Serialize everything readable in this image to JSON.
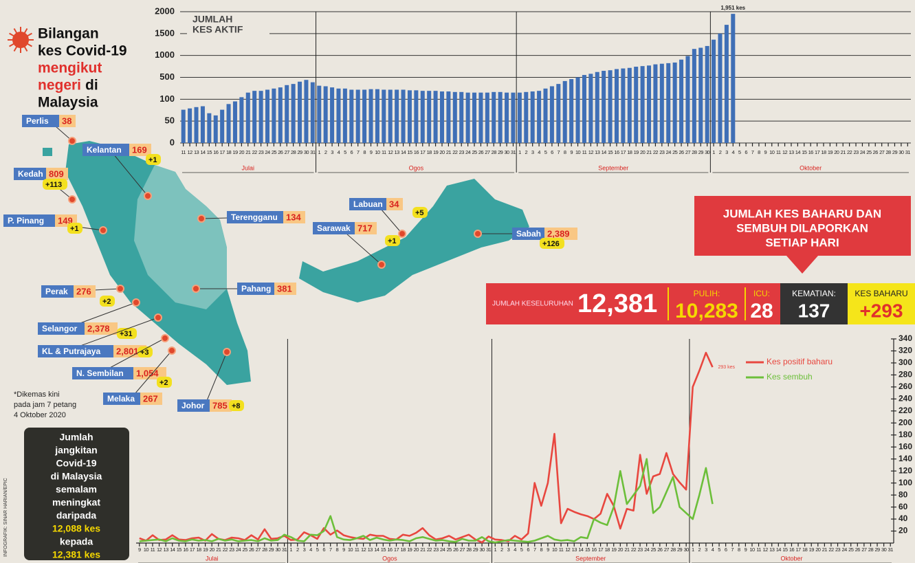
{
  "header": {
    "title": [
      "Bilangan",
      "kes Covid-19",
      "mengikut",
      "negeri",
      "di",
      "Malaysia"
    ]
  },
  "map": {
    "states": [
      {
        "name": "Perlis",
        "cases": "38",
        "new": null
      },
      {
        "name": "Kelantan",
        "cases": "169",
        "new": "+1"
      },
      {
        "name": "Kedah",
        "cases": "809",
        "new": "+113"
      },
      {
        "name": "P. Pinang",
        "cases": "149",
        "new": "+1"
      },
      {
        "name": "Terengganu",
        "cases": "134",
        "new": null
      },
      {
        "name": "Perak",
        "cases": "276",
        "new": "+2"
      },
      {
        "name": "Pahang",
        "cases": "381",
        "new": null
      },
      {
        "name": "Selangor",
        "cases": "2,378",
        "new": "+31"
      },
      {
        "name": "KL & Putrajaya",
        "cases": "2,801",
        "new": "+3"
      },
      {
        "name": "N. Sembilan",
        "cases": "1,054",
        "new": "+2"
      },
      {
        "name": "Melaka",
        "cases": "267",
        "new": null
      },
      {
        "name": "Johor",
        "cases": "785",
        "new": "+8"
      },
      {
        "name": "Labuan",
        "cases": "34",
        "new": "+5"
      },
      {
        "name": "Sarawak",
        "cases": "717",
        "new": "+1"
      },
      {
        "name": "Sabah",
        "cases": "2,389",
        "new": "+126"
      }
    ],
    "note": [
      "*Dikemas kini",
      "pada jam 7 petang",
      "4 Oktober 2020"
    ]
  },
  "summary_box": [
    "Jumlah",
    "jangkitan",
    "Covid-19",
    "di Malaysia",
    "semalam",
    "meningkat",
    "daripada",
    "12,088 kes",
    "kepada",
    "12,381 kes"
  ],
  "credit": "INFOGRAFIK: SINAR HARIAN/EPIC",
  "banner": [
    "JUMLAH KES BAHARU DAN",
    "SEMBUH DILAPORKAN",
    "SETIAP HARI"
  ],
  "stats": {
    "total": {
      "label": "JUMLAH KESELURUHAN",
      "value": "12,381"
    },
    "recovered": {
      "label": "PULIH:",
      "value": "10,283"
    },
    "icu": {
      "label": "ICU:",
      "value": "28"
    },
    "deaths": {
      "label": "KEMATIAN:",
      "value": "137"
    },
    "new": {
      "label": "KES BAHARU",
      "value": "+293"
    }
  },
  "chart_data": [
    {
      "type": "bar",
      "title": [
        "JUMLAH",
        "KES AKTIF"
      ],
      "months": [
        "Julai",
        "Ogos",
        "September",
        "Oktober"
      ],
      "categories": [
        "11",
        "12",
        "13",
        "14",
        "15",
        "16",
        "17",
        "18",
        "19",
        "20",
        "21",
        "22",
        "23",
        "24",
        "25",
        "26",
        "27",
        "28",
        "29",
        "30",
        "31",
        "1",
        "2",
        "3",
        "4",
        "5",
        "6",
        "7",
        "8",
        "9",
        "10",
        "11",
        "12",
        "13",
        "14",
        "15",
        "16",
        "17",
        "18",
        "19",
        "20",
        "21",
        "22",
        "23",
        "24",
        "25",
        "26",
        "27",
        "28",
        "29",
        "30",
        "31",
        "1",
        "2",
        "3",
        "4",
        "5",
        "6",
        "7",
        "8",
        "9",
        "10",
        "11",
        "12",
        "13",
        "14",
        "15",
        "16",
        "17",
        "18",
        "19",
        "20",
        "21",
        "22",
        "23",
        "24",
        "25",
        "26",
        "27",
        "28",
        "29",
        "30",
        "1",
        "2",
        "3",
        "4",
        "5",
        "6",
        "7",
        "8",
        "9",
        "10",
        "11",
        "12",
        "13",
        "14",
        "15",
        "16",
        "17",
        "18",
        "19",
        "20",
        "21",
        "22",
        "23",
        "24",
        "25",
        "26",
        "27",
        "28",
        "29",
        "30",
        "31"
      ],
      "values": [
        76,
        79,
        82,
        84,
        68,
        63,
        76,
        89,
        95,
        137,
        221,
        253,
        253,
        274,
        295,
        316,
        358,
        379,
        421,
        453,
        410,
        347,
        337,
        316,
        295,
        295,
        274,
        274,
        274,
        284,
        284,
        274,
        274,
        274,
        274,
        263,
        263,
        253,
        253,
        253,
        242,
        242,
        232,
        232,
        221,
        221,
        221,
        221,
        232,
        232,
        221,
        221,
        221,
        232,
        242,
        253,
        295,
        337,
        379,
        432,
        468,
        500,
        554,
        581,
        622,
        649,
        662,
        689,
        703,
        716,
        743,
        757,
        770,
        797,
        811,
        824,
        838,
        905,
        986,
        1149,
        1176,
        1216,
        1361,
        1500,
        1700,
        1951,
        null,
        null,
        null,
        null,
        null,
        null,
        null,
        null,
        null,
        null,
        null,
        null,
        null,
        null,
        null,
        null,
        null,
        null,
        null,
        null,
        null,
        null,
        null,
        null,
        null,
        null,
        null
      ],
      "value_labels": [
        null,
        null,
        null,
        null,
        null,
        null,
        null,
        null,
        null,
        null,
        null,
        null,
        null,
        null,
        null,
        null,
        null,
        null,
        null,
        null,
        null,
        null,
        null,
        null,
        null,
        null,
        null,
        null,
        null,
        null,
        null,
        null,
        null,
        null,
        null,
        null,
        null,
        null,
        null,
        null,
        null,
        null,
        null,
        null,
        null,
        null,
        null,
        null,
        null,
        null,
        null,
        null,
        null,
        null,
        null,
        null,
        null,
        null,
        null,
        null,
        null,
        null,
        null,
        null,
        null,
        null,
        null,
        null,
        null,
        null,
        null,
        null,
        null,
        null,
        null,
        null,
        null,
        null,
        null,
        null,
        null,
        null,
        null,
        null,
        null,
        "1,951 kes",
        null,
        null,
        null,
        null,
        null,
        null,
        null,
        null,
        null,
        null,
        null,
        null,
        null,
        null,
        null,
        null,
        null,
        null,
        null,
        null,
        null,
        null,
        null,
        null,
        null,
        null,
        null
      ],
      "color": "#3f6fb6",
      "ylim": [
        0,
        2000
      ],
      "yticks": [
        0,
        50,
        100,
        500,
        1000,
        1500,
        2000
      ],
      "yscale": "piecewise",
      "grid": true
    },
    {
      "type": "line",
      "months": [
        "Julai",
        "Ogos",
        "September",
        "Oktober"
      ],
      "categories": [
        "9",
        "10",
        "11",
        "12",
        "13",
        "14",
        "15",
        "16",
        "17",
        "18",
        "19",
        "20",
        "21",
        "22",
        "23",
        "24",
        "25",
        "26",
        "27",
        "28",
        "29",
        "30",
        "31",
        "1",
        "2",
        "3",
        "4",
        "5",
        "6",
        "7",
        "8",
        "9",
        "10",
        "11",
        "12",
        "13",
        "14",
        "15",
        "16",
        "17",
        "18",
        "19",
        "20",
        "21",
        "22",
        "23",
        "24",
        "25",
        "26",
        "27",
        "28",
        "29",
        "30",
        "31",
        "1",
        "2",
        "3",
        "4",
        "5",
        "6",
        "7",
        "8",
        "9",
        "10",
        "11",
        "12",
        "13",
        "14",
        "15",
        "16",
        "17",
        "18",
        "19",
        "20",
        "21",
        "22",
        "23",
        "24",
        "25",
        "26",
        "27",
        "28",
        "29",
        "30",
        "1",
        "2",
        "3",
        "4",
        "5",
        "6",
        "7",
        "8",
        "9",
        "10",
        "11",
        "12",
        "13",
        "14",
        "15",
        "16",
        "17",
        "18",
        "19",
        "20",
        "21",
        "22",
        "23",
        "24",
        "25",
        "26",
        "27",
        "28",
        "29",
        "30",
        "31"
      ],
      "series": [
        {
          "name": "Kes positif baharu",
          "color": "#e8473f",
          "values": [
            8,
            4,
            13,
            5,
            6,
            13,
            6,
            5,
            8,
            9,
            4,
            15,
            7,
            5,
            9,
            8,
            5,
            13,
            6,
            23,
            7,
            8,
            12,
            5,
            6,
            18,
            13,
            7,
            25,
            14,
            21,
            13,
            10,
            8,
            7,
            14,
            12,
            12,
            7,
            6,
            14,
            12,
            17,
            25,
            13,
            6,
            8,
            12,
            6,
            10,
            14,
            6,
            1,
            11,
            6,
            5,
            3,
            12,
            6,
            16,
            100,
            62,
            100,
            182,
            33,
            57,
            52,
            48,
            45,
            40,
            49,
            82,
            62,
            24,
            57,
            54,
            147,
            82,
            111,
            115,
            150,
            115,
            101,
            89,
            260,
            287,
            317,
            293,
            null,
            null,
            null,
            null,
            null,
            null,
            null,
            null,
            null,
            null,
            null,
            null,
            null,
            null,
            null,
            null,
            null,
            null,
            null,
            null,
            null,
            null,
            null,
            null,
            null,
            null,
            null
          ],
          "value_labels": [
            null,
            null,
            null,
            null,
            null,
            null,
            null,
            null,
            null,
            null,
            null,
            null,
            null,
            null,
            null,
            null,
            null,
            null,
            null,
            null,
            null,
            null,
            null,
            null,
            null,
            null,
            null,
            null,
            null,
            null,
            null,
            null,
            null,
            null,
            null,
            null,
            null,
            null,
            null,
            null,
            null,
            null,
            null,
            null,
            null,
            null,
            null,
            null,
            null,
            null,
            null,
            null,
            null,
            null,
            null,
            null,
            null,
            null,
            null,
            null,
            null,
            null,
            null,
            null,
            null,
            null,
            null,
            null,
            null,
            null,
            null,
            null,
            null,
            null,
            null,
            null,
            null,
            null,
            null,
            null,
            null,
            null,
            null,
            null,
            null,
            null,
            null,
            "293 kes",
            null,
            null,
            null,
            null,
            null,
            null,
            null,
            null,
            null,
            null,
            null,
            null,
            null,
            null,
            null,
            null,
            null,
            null,
            null,
            null,
            null,
            null,
            null,
            null,
            null,
            null,
            null
          ]
        },
        {
          "name": "Kes sembuh",
          "color": "#6cbf3a",
          "values": [
            3,
            4,
            5,
            6,
            3,
            8,
            4,
            3,
            6,
            4,
            5,
            3,
            7,
            4,
            6,
            3,
            4,
            5,
            3,
            8,
            4,
            5,
            14,
            10,
            4,
            3,
            14,
            13,
            20,
            45,
            10,
            6,
            5,
            8,
            12,
            5,
            9,
            6,
            4,
            6,
            5,
            3,
            8,
            10,
            7,
            4,
            5,
            3,
            2,
            7,
            4,
            4,
            10,
            3,
            1,
            3,
            5,
            4,
            3,
            2,
            4,
            8,
            12,
            6,
            4,
            5,
            3,
            10,
            8,
            40,
            34,
            30,
            60,
            120,
            65,
            80,
            95,
            140,
            50,
            60,
            85,
            110,
            60,
            50,
            40,
            80,
            125,
            65,
            null,
            null,
            null,
            null,
            null,
            null,
            null,
            null,
            null,
            null,
            null,
            null,
            null,
            null,
            null,
            null,
            null,
            null,
            null,
            null,
            null,
            null,
            null,
            null,
            null,
            null,
            null
          ]
        }
      ],
      "ylim": [
        0,
        340
      ],
      "yticks": [
        20,
        40,
        60,
        80,
        100,
        120,
        140,
        160,
        180,
        200,
        220,
        240,
        260,
        280,
        300,
        320,
        340
      ],
      "yaxis": "right",
      "grid": false,
      "legend": "upper right"
    }
  ]
}
